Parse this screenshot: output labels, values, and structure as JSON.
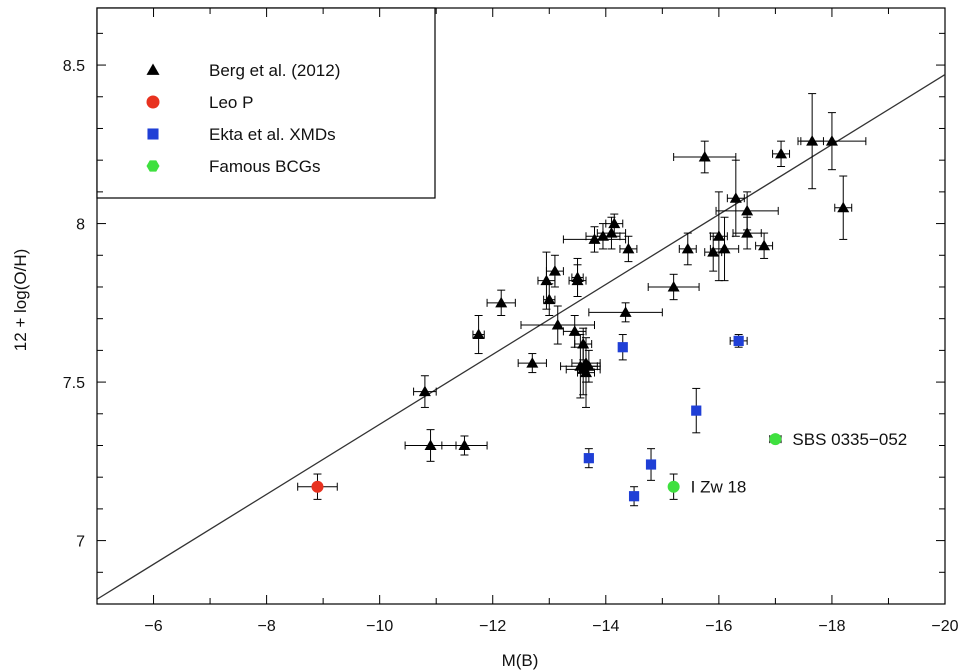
{
  "chart_data": {
    "type": "scatter",
    "xlabel": "M(B)",
    "ylabel": "12 + log(O/H)",
    "xlim": [
      -5,
      -20
    ],
    "ylim": [
      6.8,
      8.68
    ],
    "x_reversed": true,
    "x_ticks": [
      -6,
      -8,
      -10,
      -12,
      -14,
      -16,
      -18,
      -20
    ],
    "x_tick_labels": [
      "−6",
      "−8",
      "−10",
      "−12",
      "−14",
      "−16",
      "−18",
      "−20"
    ],
    "y_ticks": [
      7,
      7.5,
      8,
      8.5
    ],
    "y_tick_labels": [
      "7",
      "7.5",
      "8",
      "8.5"
    ],
    "grid": false,
    "legend_position": "top-left",
    "fit_line": {
      "points": [
        [
          -5,
          6.815
        ],
        [
          -20,
          8.47
        ]
      ],
      "color": "#333333"
    },
    "series": [
      {
        "name": "Berg et al. (2012)",
        "marker": "triangle",
        "color": "#000000",
        "points": [
          {
            "x": -10.8,
            "y": 7.47,
            "xerr": 0.2,
            "yerr": 0.05
          },
          {
            "x": -10.9,
            "y": 7.3,
            "xerr": 0.45,
            "yerr": 0.05
          },
          {
            "x": -11.5,
            "y": 7.3,
            "xerr": 0.4,
            "yerr": 0.03
          },
          {
            "x": -11.75,
            "y": 7.65,
            "xerr": 0.1,
            "yerr": 0.06
          },
          {
            "x": -12.15,
            "y": 7.75,
            "xerr": 0.25,
            "yerr": 0.04
          },
          {
            "x": -12.7,
            "y": 7.56,
            "xerr": 0.25,
            "yerr": 0.03
          },
          {
            "x": -12.95,
            "y": 7.82,
            "xerr": 0.15,
            "yerr": 0.09
          },
          {
            "x": -13.0,
            "y": 7.76,
            "xerr": 0.1,
            "yerr": 0.05
          },
          {
            "x": -13.1,
            "y": 7.85,
            "xerr": 0.15,
            "yerr": 0.05
          },
          {
            "x": -13.15,
            "y": 7.68,
            "xerr": 0.65,
            "yerr": 0.06
          },
          {
            "x": -13.45,
            "y": 7.66,
            "xerr": 0.2,
            "yerr": 0.05
          },
          {
            "x": -13.5,
            "y": 7.83,
            "xerr": 0.1,
            "yerr": 0.06
          },
          {
            "x": -13.5,
            "y": 7.82,
            "xerr": 0.15,
            "yerr": 0.05
          },
          {
            "x": -13.55,
            "y": 7.55,
            "xerr": 0.35,
            "yerr": 0.1
          },
          {
            "x": -13.6,
            "y": 7.62,
            "xerr": 0.15,
            "yerr": 0.05
          },
          {
            "x": -13.6,
            "y": 7.54,
            "xerr": 0.3,
            "yerr": 0.08
          },
          {
            "x": -13.65,
            "y": 7.56,
            "xerr": 0.25,
            "yerr": 0.06
          },
          {
            "x": -13.65,
            "y": 7.53,
            "xerr": 0.15,
            "yerr": 0.11
          },
          {
            "x": -13.7,
            "y": 7.55,
            "xerr": 0.15,
            "yerr": 0.05
          },
          {
            "x": -13.8,
            "y": 7.95,
            "xerr": 0.55,
            "yerr": 0.04
          },
          {
            "x": -13.95,
            "y": 7.96,
            "xerr": 0.3,
            "yerr": 0.04
          },
          {
            "x": -14.1,
            "y": 7.97,
            "xerr": 0.25,
            "yerr": 0.05
          },
          {
            "x": -14.15,
            "y": 8.0,
            "xerr": 0.15,
            "yerr": 0.03
          },
          {
            "x": -14.35,
            "y": 7.72,
            "xerr": 0.65,
            "yerr": 0.03
          },
          {
            "x": -14.4,
            "y": 7.92,
            "xerr": 0.15,
            "yerr": 0.04
          },
          {
            "x": -15.2,
            "y": 7.8,
            "xerr": 0.45,
            "yerr": 0.04
          },
          {
            "x": -15.45,
            "y": 7.92,
            "xerr": 0.15,
            "yerr": 0.05
          },
          {
            "x": -15.75,
            "y": 8.21,
            "xerr": 0.55,
            "yerr": 0.05
          },
          {
            "x": -15.9,
            "y": 7.91,
            "xerr": 0.15,
            "yerr": 0.06
          },
          {
            "x": -16.0,
            "y": 7.96,
            "xerr": 0.15,
            "yerr": 0.14
          },
          {
            "x": -16.1,
            "y": 7.92,
            "xerr": 0.25,
            "yerr": 0.1
          },
          {
            "x": -16.3,
            "y": 8.08,
            "xerr": 0.15,
            "yerr": 0.12
          },
          {
            "x": -16.5,
            "y": 8.04,
            "xerr": 0.55,
            "yerr": 0.06
          },
          {
            "x": -16.5,
            "y": 7.97,
            "xerr": 0.25,
            "yerr": 0.05
          },
          {
            "x": -16.8,
            "y": 7.93,
            "xerr": 0.15,
            "yerr": 0.04
          },
          {
            "x": -17.1,
            "y": 8.22,
            "xerr": 0.15,
            "yerr": 0.04
          },
          {
            "x": -17.65,
            "y": 8.26,
            "xerr": 0.2,
            "yerr": 0.15
          },
          {
            "x": -18.0,
            "y": 8.26,
            "xerr": 0.6,
            "yerr": 0.09
          },
          {
            "x": -18.2,
            "y": 8.05,
            "xerr": 0.15,
            "yerr": 0.1
          }
        ]
      },
      {
        "name": "Leo P",
        "marker": "circle",
        "color": "#e8321f",
        "points": [
          {
            "x": -8.9,
            "y": 7.17,
            "xerr": 0.35,
            "yerr": 0.04
          }
        ]
      },
      {
        "name": "Ekta et al. XMDs",
        "marker": "square",
        "color": "#1f3fd6",
        "points": [
          {
            "x": -13.7,
            "y": 7.26,
            "xerr": 0.0,
            "yerr": 0.03
          },
          {
            "x": -14.3,
            "y": 7.61,
            "xerr": 0.0,
            "yerr": 0.04
          },
          {
            "x": -14.5,
            "y": 7.14,
            "xerr": 0.0,
            "yerr": 0.03
          },
          {
            "x": -14.8,
            "y": 7.24,
            "xerr": 0.0,
            "yerr": 0.05
          },
          {
            "x": -15.6,
            "y": 7.41,
            "xerr": 0.0,
            "yerr": 0.07
          },
          {
            "x": -16.35,
            "y": 7.63,
            "xerr": 0.15,
            "yerr": 0.02
          }
        ]
      },
      {
        "name": "Famous BCGs",
        "marker": "circle",
        "color": "#3fe03f",
        "points": [
          {
            "x": -15.2,
            "y": 7.17,
            "xerr": 0.0,
            "yerr": 0.04,
            "label": "I Zw 18"
          },
          {
            "x": -17.0,
            "y": 7.32,
            "xerr": 0.1,
            "yerr": 0.01,
            "label": "SBS 0335−052"
          }
        ]
      }
    ],
    "legend": [
      {
        "label": "Berg et al. (2012)",
        "marker": "triangle",
        "color": "#000000"
      },
      {
        "label": "Leo P",
        "marker": "circle",
        "color": "#e8321f"
      },
      {
        "label": "Ekta et al. XMDs",
        "marker": "square",
        "color": "#1f3fd6"
      },
      {
        "label": "Famous BCGs",
        "marker": "hexagon",
        "color": "#3fe03f"
      }
    ]
  }
}
